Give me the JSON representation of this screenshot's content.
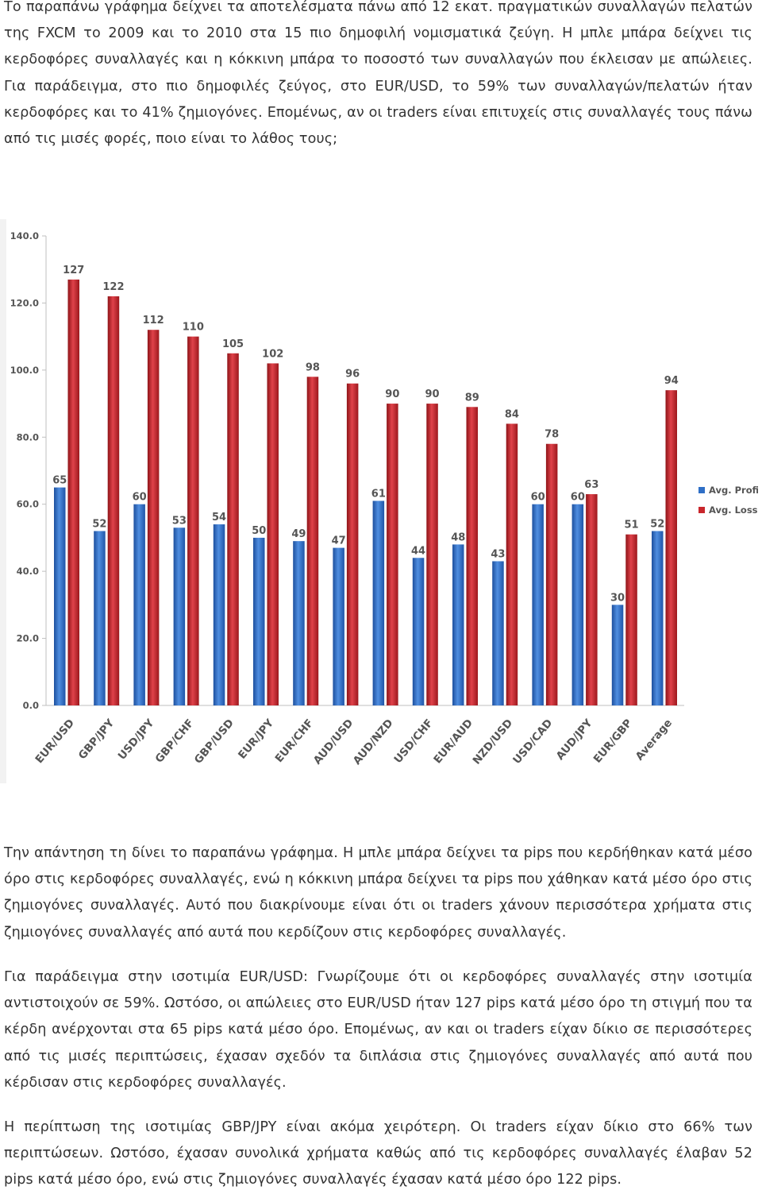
{
  "paragraphs": [
    "Το παραπάνω γράφημα δείχνει τα αποτελέσματα πάνω από 12 εκατ. πραγματικών συναλλαγών πελατών της FXCM το 2009 και το 2010 στα 15 πιο δημοφιλή νομισματικά ζεύγη. Η μπλε μπάρα δείχνει τις κερδοφόρες συναλλαγές και η κόκκινη μπάρα το ποσοστό των συναλλαγών που έκλεισαν με απώλειες. Για παράδειγμα, στο πιο δημοφιλές ζεύγος, στο EUR/USD, το 59% των συναλλαγών/πελατών ήταν κερδοφόρες και το 41% ζημιογόνες. Επομένως, αν οι traders είναι επιτυχείς στις συναλλαγές τους πάνω από τις μισές φορές, ποιο είναι το λάθος τους;",
    "Την απάντηση τη δίνει το παραπάνω γράφημα. Η μπλε μπάρα δείχνει τα pips που κερδήθηκαν κατά μέσο όρο στις κερδοφόρες συναλλαγές, ενώ η κόκκινη μπάρα δείχνει τα pips που χάθηκαν κατά μέσο όρο στις ζημιογόνες συναλλαγές. Αυτό που διακρίνουμε είναι ότι οι traders χάνουν περισσότερα χρήματα στις ζημιογόνες συναλλαγές από αυτά που κερδίζουν στις κερδοφόρες συναλλαγές.",
    "Για παράδειγμα στην ισοτιμία EUR/USD: Γνωρίζουμε ότι οι κερδοφόρες συναλλαγές στην ισοτιμία αντιστοιχούν σε 59%. Ωστόσο, οι απώλειες στο EUR/USD ήταν 127 pips κατά μέσο όρο τη στιγμή που τα κέρδη ανέρχονται στα 65 pips κατά μέσο όρο. Επομένως, αν και οι traders είχαν δίκιο σε περισσότερες από τις μισές περιπτώσεις, έχασαν σχεδόν τα διπλάσια στις ζημιογόνες συναλλαγές από αυτά που κέρδισαν στις κερδοφόρες συναλλαγές.",
    "Η περίπτωση της ισοτιμίας GBP/JPY είναι ακόμα χειρότερη. Οι traders είχαν δίκιο στο 66% των περιπτώσεων. Ωστόσο, έχασαν συνολικά χρήματα καθώς από τις κερδοφόρες συναλλαγές έλαβαν 52 pips κατά μέσο όρο, ενώ στις ζημιογόνες συναλλαγές έχασαν κατά μέσο όρο 122 pips."
  ],
  "chart_data": {
    "type": "bar",
    "title": "",
    "xlabel": "",
    "ylabel": "",
    "ylim": [
      0,
      140
    ],
    "yticks": [
      "0.0",
      "20.0",
      "40.0",
      "60.0",
      "80.0",
      "100.0",
      "120.0",
      "140.0"
    ],
    "categories": [
      "EUR/USD",
      "GBP/JPY",
      "USD/JPY",
      "GBP/CHF",
      "GBP/USD",
      "EUR/JPY",
      "EUR/CHF",
      "AUD/USD",
      "AUD/NZD",
      "USD/CHF",
      "EUR/AUD",
      "NZD/USD",
      "USD/CAD",
      "AUD/JPY",
      "EUR/GBP",
      "Average"
    ],
    "series": [
      {
        "name": "Avg. Profit",
        "color": "#2f6fc6",
        "values": [
          65,
          52,
          60,
          53,
          54,
          50,
          49,
          47,
          61,
          44,
          48,
          43,
          60,
          60,
          30,
          52
        ]
      },
      {
        "name": "Avg. Loss",
        "color": "#c9262c",
        "values": [
          127,
          122,
          112,
          110,
          105,
          102,
          98,
          96,
          90,
          90,
          89,
          84,
          78,
          63,
          51,
          94
        ]
      }
    ],
    "grid": false,
    "legend_position": "right"
  }
}
